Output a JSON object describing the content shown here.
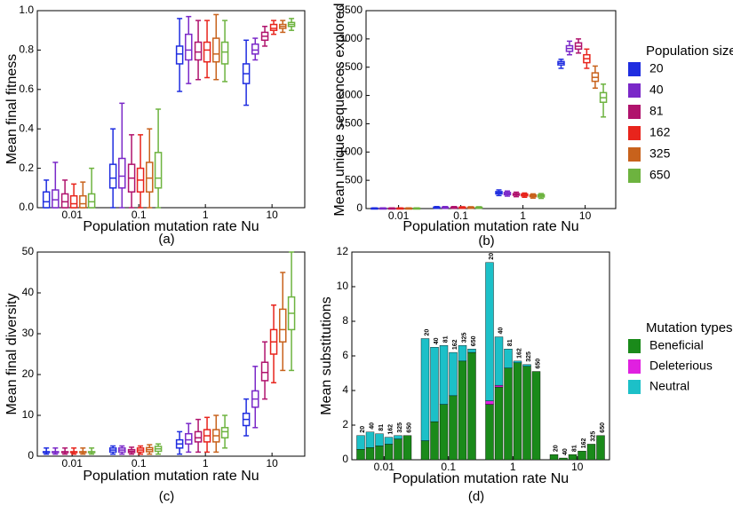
{
  "chart_data": [
    {
      "type": "boxplot",
      "label": "(a)",
      "xlabel": "Population mutation rate Nu",
      "ylabel": "Mean final fitness",
      "xscale": "log",
      "xlim": [
        0.003,
        31
      ],
      "xticks": [
        0.01,
        0.1,
        1,
        10
      ],
      "ylim": [
        0,
        1
      ],
      "yticks": [
        {
          "value": 0,
          "label": "0.0"
        },
        0.2,
        0.4,
        0.6,
        0.8,
        {
          "value": 1,
          "label": "1.0"
        }
      ],
      "series": [
        {
          "color": "#1f2de0",
          "x": [
            0.0041,
            0.041,
            0.41,
            4.1
          ],
          "median": [
            0.03,
            0.15,
            0.78,
            0.68
          ],
          "q1": [
            0,
            0.1,
            0.73,
            0.63
          ],
          "q3": [
            0.08,
            0.22,
            0.82,
            0.73
          ],
          "whislo": [
            0,
            0,
            0.59,
            0.52
          ],
          "whishi": [
            0.14,
            0.4,
            0.96,
            0.85
          ]
        },
        {
          "color": "#7a28c8",
          "x": [
            0.0056,
            0.056,
            0.56,
            5.6
          ],
          "median": [
            0.04,
            0.16,
            0.8,
            0.8
          ],
          "q1": [
            0,
            0.1,
            0.75,
            0.78
          ],
          "q3": [
            0.09,
            0.25,
            0.88,
            0.83
          ],
          "whislo": [
            0,
            0,
            0.63,
            0.75
          ],
          "whishi": [
            0.23,
            0.53,
            0.97,
            0.86
          ]
        },
        {
          "color": "#b0136d",
          "x": [
            0.0078,
            0.078,
            0.78,
            7.8
          ],
          "median": [
            0.03,
            0.15,
            0.79,
            0.87
          ],
          "q1": [
            0,
            0.08,
            0.75,
            0.85
          ],
          "q3": [
            0.07,
            0.22,
            0.84,
            0.89
          ],
          "whislo": [
            0,
            0,
            0.65,
            0.82
          ],
          "whishi": [
            0.14,
            0.37,
            0.95,
            0.92
          ]
        },
        {
          "color": "#e8241c",
          "x": [
            0.0106,
            0.106,
            1.06,
            10.6
          ],
          "median": [
            0.02,
            0.14,
            0.8,
            0.91
          ],
          "q1": [
            0,
            0.08,
            0.74,
            0.9
          ],
          "q3": [
            0.06,
            0.2,
            0.84,
            0.93
          ],
          "whislo": [
            0,
            0,
            0.66,
            0.88
          ],
          "whishi": [
            0.12,
            0.37,
            0.95,
            0.95
          ]
        },
        {
          "color": "#c8621c",
          "x": [
            0.0145,
            0.145,
            1.45,
            14.5
          ],
          "median": [
            0.02,
            0.15,
            0.78,
            0.92
          ],
          "q1": [
            0,
            0.08,
            0.74,
            0.91
          ],
          "q3": [
            0.06,
            0.23,
            0.86,
            0.93
          ],
          "whislo": [
            0,
            0,
            0.65,
            0.89
          ],
          "whishi": [
            0.13,
            0.4,
            0.98,
            0.95
          ]
        },
        {
          "color": "#6db33f",
          "x": [
            0.0196,
            0.196,
            1.96,
            19.6
          ],
          "median": [
            0.03,
            0.15,
            0.79,
            0.93
          ],
          "q1": [
            0,
            0.1,
            0.73,
            0.92
          ],
          "q3": [
            0.07,
            0.28,
            0.84,
            0.94
          ],
          "whislo": [
            0,
            0,
            0.64,
            0.9
          ],
          "whishi": [
            0.2,
            0.5,
            0.95,
            0.96
          ]
        }
      ]
    },
    {
      "type": "boxplot",
      "label": "(b)",
      "xlabel": "Population mutation rate Nu",
      "ylabel": "Mean unique sequences explored",
      "xscale": "log",
      "xlim": [
        0.003,
        31
      ],
      "xticks": [
        0.01,
        0.1,
        1,
        10
      ],
      "ylim": [
        0,
        3500
      ],
      "yticks": [
        0,
        500,
        1000,
        1500,
        2000,
        2500,
        3000,
        3500
      ],
      "legend_title": "Population sizes",
      "series": [
        {
          "name": "20",
          "color": "#1f2de0",
          "x": [
            0.0041,
            0.041,
            0.41,
            4.1
          ],
          "median": [
            5,
            20,
            280,
            2570
          ],
          "q1": [
            3,
            15,
            260,
            2540
          ],
          "q3": [
            8,
            25,
            300,
            2600
          ],
          "whislo": [
            0,
            5,
            230,
            2480
          ],
          "whishi": [
            12,
            35,
            330,
            2640
          ]
        },
        {
          "name": "40",
          "color": "#7a28c8",
          "x": [
            0.0056,
            0.056,
            0.56,
            5.6
          ],
          "median": [
            5,
            20,
            265,
            2830
          ],
          "q1": [
            3,
            15,
            245,
            2780
          ],
          "q3": [
            8,
            25,
            285,
            2880
          ],
          "whislo": [
            0,
            5,
            220,
            2720
          ],
          "whishi": [
            12,
            35,
            310,
            2960
          ]
        },
        {
          "name": "81",
          "color": "#b0136d",
          "x": [
            0.0078,
            0.078,
            0.78,
            7.8
          ],
          "median": [
            5,
            20,
            250,
            2870
          ],
          "q1": [
            3,
            15,
            235,
            2820
          ],
          "q3": [
            8,
            25,
            265,
            2930
          ],
          "whislo": [
            0,
            5,
            210,
            2750
          ],
          "whishi": [
            12,
            35,
            290,
            3000
          ]
        },
        {
          "name": "162",
          "color": "#e8241c",
          "x": [
            0.0106,
            0.106,
            1.06,
            10.6
          ],
          "median": [
            5,
            18,
            240,
            2650
          ],
          "q1": [
            3,
            14,
            225,
            2580
          ],
          "q3": [
            8,
            24,
            255,
            2720
          ],
          "whislo": [
            0,
            5,
            200,
            2480
          ],
          "whishi": [
            12,
            32,
            275,
            2820
          ]
        },
        {
          "name": "325",
          "color": "#c8621c",
          "x": [
            0.0145,
            0.145,
            1.45,
            14.5
          ],
          "median": [
            5,
            18,
            225,
            2320
          ],
          "q1": [
            3,
            14,
            210,
            2250
          ],
          "q3": [
            8,
            24,
            240,
            2400
          ],
          "whislo": [
            0,
            5,
            185,
            2130
          ],
          "whishi": [
            12,
            32,
            260,
            2520
          ]
        },
        {
          "name": "650",
          "color": "#6db33f",
          "x": [
            0.0196,
            0.196,
            1.96,
            19.6
          ],
          "median": [
            5,
            18,
            225,
            1960
          ],
          "q1": [
            3,
            14,
            205,
            1880
          ],
          "q3": [
            8,
            24,
            245,
            2050
          ],
          "whislo": [
            0,
            5,
            180,
            1620
          ],
          "whishi": [
            12,
            32,
            265,
            2200
          ]
        }
      ]
    },
    {
      "type": "boxplot",
      "label": "(c)",
      "xlabel": "Population mutation rate Nu",
      "ylabel": "Mean final diversity",
      "xscale": "log",
      "xlim": [
        0.003,
        31
      ],
      "xticks": [
        0.01,
        0.1,
        1,
        10
      ],
      "ylim": [
        0,
        50
      ],
      "yticks": [
        0,
        10,
        20,
        30,
        40,
        50
      ],
      "series": [
        {
          "color": "#1f2de0",
          "x": [
            0.0041,
            0.041,
            0.41,
            4.1
          ],
          "median": [
            1,
            1.5,
            3,
            9
          ],
          "q1": [
            0.9,
            1,
            2,
            7.5
          ],
          "q3": [
            1.1,
            2,
            4,
            10.5
          ],
          "whislo": [
            0.5,
            0.5,
            0.5,
            5
          ],
          "whishi": [
            2,
            2.5,
            6,
            14
          ]
        },
        {
          "color": "#7a28c8",
          "x": [
            0.0056,
            0.056,
            0.56,
            5.6
          ],
          "median": [
            1,
            1.5,
            4,
            14
          ],
          "q1": [
            0.9,
            1,
            3,
            12
          ],
          "q3": [
            1.1,
            2,
            5.5,
            16
          ],
          "whislo": [
            0.5,
            0.5,
            1,
            7
          ],
          "whishi": [
            2,
            2.5,
            8,
            22
          ]
        },
        {
          "color": "#b0136d",
          "x": [
            0.0078,
            0.078,
            0.78,
            7.8
          ],
          "median": [
            1,
            1.2,
            4.5,
            20.5
          ],
          "q1": [
            0.9,
            0.9,
            3.5,
            18.5
          ],
          "q3": [
            1.1,
            1.6,
            6,
            23
          ],
          "whislo": [
            0.5,
            0.5,
            1,
            14
          ],
          "whishi": [
            2,
            2.2,
            9,
            28
          ]
        },
        {
          "color": "#e8241c",
          "x": [
            0.0106,
            0.106,
            1.06,
            10.6
          ],
          "median": [
            1,
            1.5,
            5,
            28
          ],
          "q1": [
            0.9,
            1,
            3.5,
            25
          ],
          "q3": [
            1.1,
            2,
            6.5,
            31
          ],
          "whislo": [
            0.5,
            0.5,
            1,
            18
          ],
          "whishi": [
            2,
            2.5,
            9.5,
            37
          ]
        },
        {
          "color": "#c8621c",
          "x": [
            0.0145,
            0.145,
            1.45,
            14.5
          ],
          "median": [
            1,
            1.6,
            5,
            31
          ],
          "q1": [
            0.9,
            1.1,
            3.5,
            28
          ],
          "q3": [
            1.1,
            2.1,
            6.5,
            36
          ],
          "whislo": [
            0.5,
            0.5,
            1,
            21
          ],
          "whishi": [
            2,
            2.8,
            10,
            45
          ]
        },
        {
          "color": "#6db33f",
          "x": [
            0.0196,
            0.196,
            1.96,
            19.6
          ],
          "median": [
            1,
            1.8,
            6,
            35
          ],
          "q1": [
            0.9,
            1.2,
            4.5,
            31
          ],
          "q3": [
            1.1,
            2.4,
            7,
            39
          ],
          "whislo": [
            0.5,
            0.5,
            2,
            21
          ],
          "whishi": [
            2,
            3,
            10,
            50
          ]
        }
      ]
    },
    {
      "type": "stacked-bar",
      "label": "(d)",
      "xlabel": "Population mutation rate Nu",
      "ylabel": "Mean substitutions",
      "categories": [
        "0.01",
        "0.1",
        "1",
        "10"
      ],
      "bar_labels": [
        "20",
        "40",
        "81",
        "162",
        "325",
        "650"
      ],
      "ylim": [
        0,
        12
      ],
      "yticks": [
        0,
        2,
        4,
        6,
        8,
        10,
        12
      ],
      "legend_title": "Mutation types",
      "series": [
        {
          "name": "Beneficial",
          "color": "#1a8a1a",
          "values": [
            [
              0.6,
              0.7,
              0.8,
              0.9,
              1.2,
              1.4
            ],
            [
              1.1,
              2.2,
              3.2,
              3.7,
              5.7,
              6.2
            ],
            [
              3.2,
              4.2,
              5.3,
              5.6,
              5.4,
              5.1
            ],
            [
              0.3,
              0.1,
              0.3,
              0.5,
              0.9,
              1.4
            ]
          ]
        },
        {
          "name": "Deleterious",
          "color": "#e020e0",
          "values": [
            [
              0,
              0,
              0,
              0,
              0,
              0
            ],
            [
              0,
              0,
              0,
              0,
              0,
              0
            ],
            [
              0.2,
              0.1,
              0,
              0,
              0,
              0
            ],
            [
              0,
              0,
              0,
              0,
              0,
              0
            ]
          ]
        },
        {
          "name": "Neutral",
          "color": "#1cc0c8",
          "values": [
            [
              0.8,
              0.9,
              0.7,
              0.4,
              0.2,
              0
            ],
            [
              5.9,
              4.3,
              3.4,
              2.5,
              0.9,
              0.2
            ],
            [
              8,
              2.8,
              1.1,
              0.1,
              0.1,
              0
            ],
            [
              0,
              0,
              0,
              0,
              0,
              0
            ]
          ]
        }
      ]
    }
  ]
}
